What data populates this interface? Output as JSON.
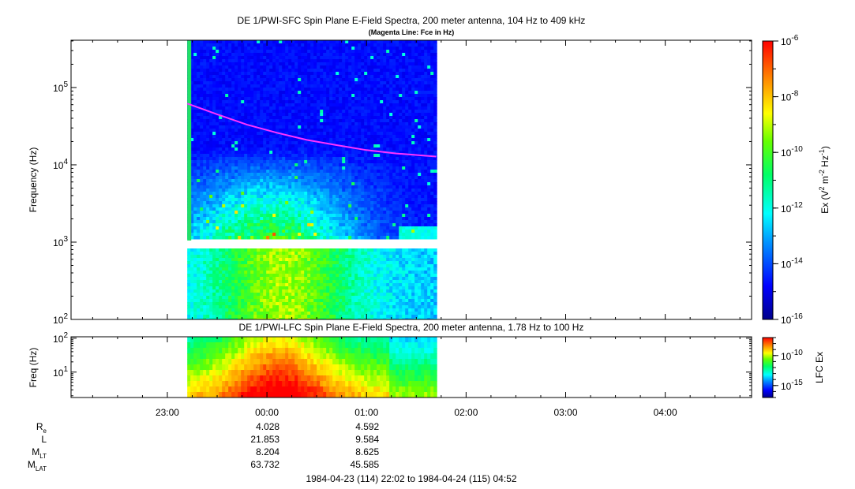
{
  "chart_data": [
    {
      "type": "heatmap",
      "title": "DE 1/PWI-SFC  Spin Plane E-Field Spectra, 200 meter antenna, 104 Hz to 409 kHz",
      "subtitle": "(Magenta Line: Fce in Hz)",
      "ylabel": "Frequency (Hz)",
      "yscale": "log",
      "ylim": [
        100,
        409000
      ],
      "yticks": [
        {
          "value": 100,
          "base": "10",
          "exp": "2"
        },
        {
          "value": 1000,
          "base": "10",
          "exp": "3"
        },
        {
          "value": 10000,
          "base": "10",
          "exp": "4"
        },
        {
          "value": 100000,
          "base": "10",
          "exp": "5"
        }
      ],
      "colorbar": {
        "label": "Ex (V",
        "label_sup1": "2",
        "label_mid": " m",
        "label_sup2": "-2",
        "label_mid2": " Hz",
        "label_sup3": "-1",
        "label_end": ")",
        "scale": "log",
        "range": [
          1e-16,
          1e-06
        ],
        "ticks": [
          {
            "value": 1e-06,
            "base": "10",
            "exp": "-6"
          },
          {
            "value": 1e-08,
            "base": "10",
            "exp": "-8"
          },
          {
            "value": 1e-10,
            "base": "10",
            "exp": "-10"
          },
          {
            "value": 1e-12,
            "base": "10",
            "exp": "-12"
          },
          {
            "value": 1e-14,
            "base": "10",
            "exp": "-14"
          },
          {
            "value": 1e-16,
            "base": "10",
            "exp": "-16"
          }
        ]
      },
      "data_coverage": {
        "start_hour": 23.2,
        "end_hour": 25.7
      },
      "gap_freq_hz": [
        870,
        1050
      ],
      "fce_line": {
        "x_hours": [
          23.2,
          23.5,
          23.8,
          24.1,
          24.4,
          24.7,
          25.0,
          25.3,
          25.7
        ],
        "y_hz": [
          62000,
          45000,
          33000,
          26000,
          21000,
          18000,
          15500,
          14000,
          12800
        ]
      }
    },
    {
      "type": "heatmap",
      "title": "DE 1/PWI-LFC  Spin Plane E-Field Spectra, 200 meter antenna, 1.78 Hz to 100 Hz",
      "ylabel": "Freq (Hz)",
      "yscale": "log",
      "ylim": [
        1.78,
        110
      ],
      "yticks": [
        {
          "value": 10,
          "base": "10",
          "exp": "1"
        },
        {
          "value": 100,
          "base": "10",
          "exp": "2"
        }
      ],
      "colorbar": {
        "label": "LFC Ex",
        "scale": "log",
        "range": [
          1e-17,
          1e-07
        ],
        "ticks": [
          {
            "value": 1e-10,
            "base": "10",
            "exp": "-10"
          },
          {
            "value": 1e-15,
            "base": "10",
            "exp": "-15"
          }
        ]
      },
      "data_coverage": {
        "start_hour": 23.2,
        "end_hour": 25.7
      }
    }
  ],
  "time_axis": {
    "range_hours": [
      22.033,
      28.867
    ],
    "ticks": [
      {
        "hour": 23,
        "label": "23:00"
      },
      {
        "hour": 24,
        "label": "00:00"
      },
      {
        "hour": 25,
        "label": "01:00"
      },
      {
        "hour": 26,
        "label": "02:00"
      },
      {
        "hour": 27,
        "label": "03:00"
      },
      {
        "hour": 28,
        "label": "04:00"
      }
    ]
  },
  "ephemeris": {
    "rows": [
      {
        "label": "R",
        "sub": "e",
        "values": [
          "4.028",
          "4.592"
        ]
      },
      {
        "label": "L",
        "sub": "",
        "values": [
          "21.853",
          "9.584"
        ]
      },
      {
        "label": "M",
        "sub": "LT",
        "values": [
          "8.204",
          "8.625"
        ]
      },
      {
        "label": "M",
        "sub": "LAT",
        "values": [
          "63.732",
          "45.585"
        ]
      }
    ],
    "value_hours": [
      24,
      25
    ]
  },
  "time_range_text": "1984-04-23 (114) 22:02 to 1984-04-24 (115) 04:52",
  "colors": {
    "fce_line": "#ff33ff",
    "gap": "#ffffff"
  }
}
